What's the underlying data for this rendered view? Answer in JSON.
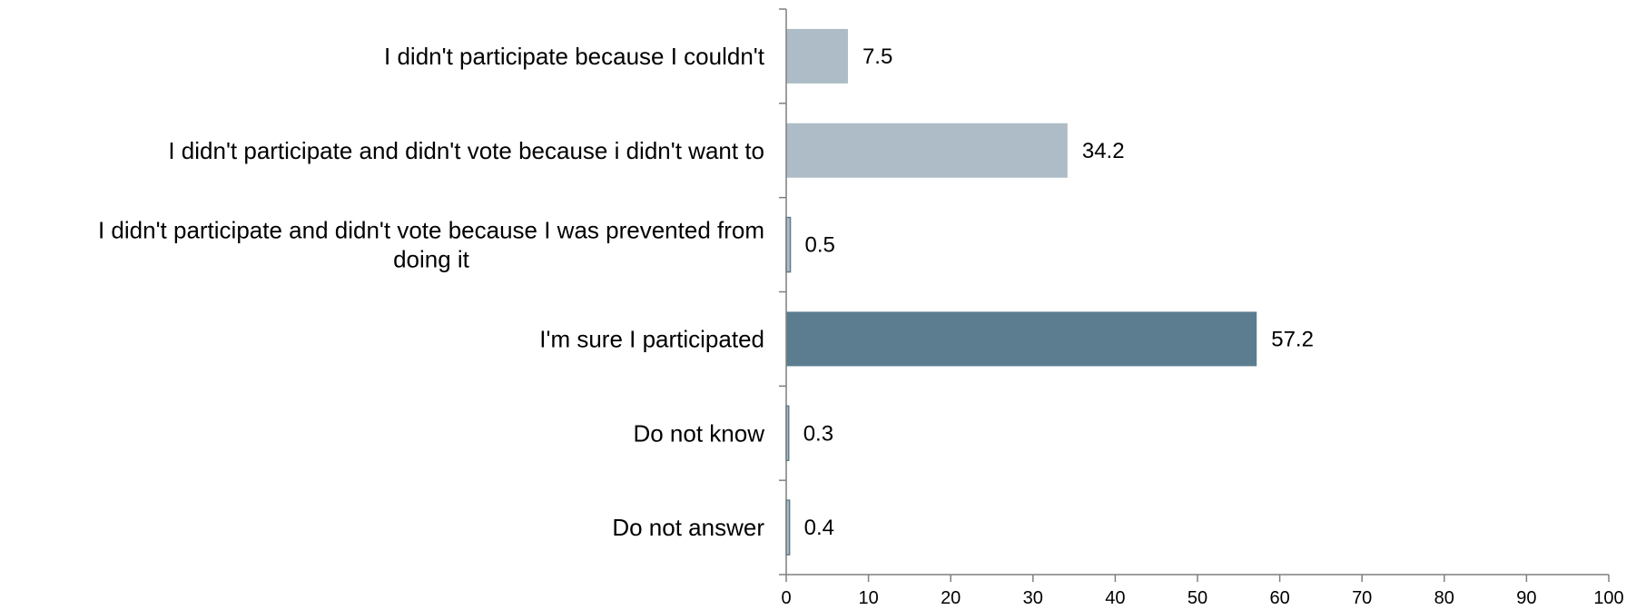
{
  "chart_data": {
    "type": "bar",
    "orientation": "horizontal",
    "title": "",
    "xlabel": "",
    "ylabel": "",
    "categories": [
      "I didn't participate because I couldn't",
      "I didn't participate and didn't vote because i didn't want to",
      "I didn't participate and didn't vote because I was prevented from doing it",
      "I'm sure I participated",
      "Do not know",
      "Do not answer"
    ],
    "category_lines": [
      [
        "I didn't participate because I couldn't"
      ],
      [
        "I didn't participate and didn't vote because i didn't want to"
      ],
      [
        "I didn't participate and didn't vote because I was prevented from",
        "doing it"
      ],
      [
        "I'm sure I participated"
      ],
      [
        "Do not know"
      ],
      [
        "Do not answer"
      ]
    ],
    "values": [
      7.5,
      34.2,
      0.5,
      57.2,
      0.3,
      0.4
    ],
    "value_labels": [
      "7.5",
      "34.2",
      "0.5",
      "57.2",
      "0.3",
      "0.4"
    ],
    "xlim": [
      0,
      100
    ],
    "xticks": [
      0,
      10,
      20,
      30,
      40,
      50,
      60,
      70,
      80,
      90,
      100
    ],
    "grid": false,
    "legend": "none",
    "colors": {
      "bar_default": "#adbcc6",
      "bar_highlight": "#5b7d8f",
      "bar_edge": "#5b7d8f",
      "axis": "#7f7f7f",
      "text": "#000000"
    },
    "highlight_index": 3
  }
}
